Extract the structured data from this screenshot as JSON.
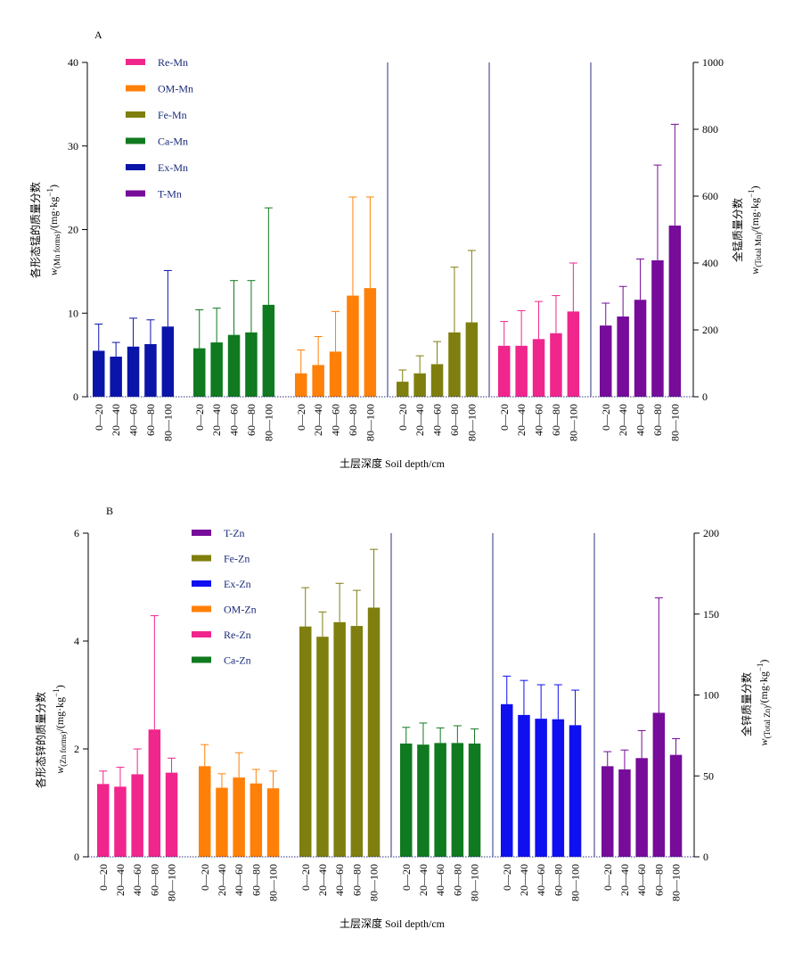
{
  "charts": [
    {
      "panel_label": "A",
      "left_label_line1": "各形态锰的质量分数",
      "left_label_w": "w",
      "left_label_sub": "(Mn forms)",
      "left_label_unit": "/(mg·kg",
      "left_label_sup": "−1",
      "left_label_close": ")",
      "right_label_line1": "全锰质量分数",
      "right_label_w": "w",
      "right_label_sub": "(Total Mn)",
      "right_label_unit": "/(mg·kg",
      "right_label_sup": "−1",
      "right_label_close": ")",
      "xlabel": "土层深度  Soil depth/cm"
    },
    {
      "panel_label": "B",
      "left_label_line1": "各形态锌的质量分数",
      "left_label_w": "w",
      "left_label_sub": "(Zn forms)",
      "left_label_unit": "/(mg·kg",
      "left_label_sup": "−1",
      "left_label_close": ")",
      "right_label_line1": "全锌质量分数",
      "right_label_w": "w",
      "right_label_sub": "(Total Zn)",
      "right_label_unit": "/(mg·kg",
      "right_label_sup": "−1",
      "right_label_close": ")",
      "xlabel": "土层深度  Soil depth/cm"
    }
  ],
  "chart_data": [
    {
      "type": "bar",
      "categories": [
        "0—20",
        "20—40",
        "40—60",
        "60—80",
        "80—100"
      ],
      "y_left_lim": [
        0,
        40
      ],
      "y_left_ticks": [
        0,
        10,
        20,
        30,
        40
      ],
      "y_right_lim": [
        0,
        1000
      ],
      "y_right_ticks": [
        0,
        200,
        400,
        600,
        800,
        1000
      ],
      "legend": [
        "Re-Mn",
        "OM-Mn",
        "Fe-Mn",
        "Ca-Mn",
        "Ex-Mn",
        "T-Mn"
      ],
      "series": [
        {
          "name": "Ex-Mn",
          "color": "#0b14a8",
          "axis": "left",
          "values": [
            5.5,
            4.8,
            6.0,
            6.3,
            8.4
          ],
          "errors": [
            3.2,
            1.7,
            3.4,
            2.9,
            6.7
          ]
        },
        {
          "name": "Ca-Mn",
          "color": "#0f7a1f",
          "axis": "left",
          "values": [
            5.8,
            6.5,
            7.4,
            7.7,
            11.0
          ],
          "errors": [
            4.6,
            4.1,
            6.5,
            6.2,
            11.6
          ]
        },
        {
          "name": "OM-Mn",
          "color": "#ff8008",
          "axis": "left",
          "values": [
            2.8,
            3.8,
            5.4,
            12.1,
            13.0
          ],
          "errors": [
            2.8,
            3.4,
            4.8,
            11.8,
            10.9
          ]
        },
        {
          "name": "Fe-Mn",
          "color": "#7f7f0f",
          "axis": "left",
          "values": [
            1.8,
            2.8,
            3.9,
            7.7,
            8.9
          ],
          "errors": [
            1.4,
            2.1,
            2.7,
            7.8,
            8.6
          ]
        },
        {
          "name": "Re-Mn",
          "color": "#f0268c",
          "axis": "left",
          "values": [
            6.1,
            6.1,
            6.9,
            7.6,
            10.2
          ],
          "errors": [
            2.9,
            4.2,
            4.5,
            4.5,
            5.8
          ]
        },
        {
          "name": "T-Mn",
          "color": "#760c99",
          "axis": "right",
          "values": [
            213,
            240,
            290,
            408,
            512
          ],
          "errors": [
            67,
            90,
            122,
            285,
            303
          ]
        }
      ],
      "grid": false
    },
    {
      "type": "bar",
      "categories": [
        "0—20",
        "20—40",
        "40—60",
        "60—80",
        "80—100"
      ],
      "y_left_lim": [
        0,
        6
      ],
      "y_left_ticks": [
        0,
        2,
        4,
        6
      ],
      "y_right_lim": [
        0,
        200
      ],
      "y_right_ticks": [
        0,
        50,
        100,
        150,
        200
      ],
      "legend": [
        "T-Zn",
        "Fe-Zn",
        "Ex-Zn",
        "OM-Zn",
        "Re-Zn",
        "Ca-Zn"
      ],
      "series": [
        {
          "name": "Re-Zn",
          "color": "#f0268c",
          "axis": "left",
          "values": [
            1.35,
            1.3,
            1.53,
            2.36,
            1.56
          ],
          "errors": [
            0.24,
            0.36,
            0.47,
            2.11,
            0.27
          ]
        },
        {
          "name": "OM-Zn",
          "color": "#ff8008",
          "axis": "left",
          "values": [
            1.68,
            1.28,
            1.47,
            1.36,
            1.27
          ],
          "errors": [
            0.4,
            0.26,
            0.46,
            0.26,
            0.32
          ]
        },
        {
          "name": "Fe-Zn",
          "color": "#7f7f0f",
          "axis": "left",
          "values": [
            4.27,
            4.08,
            4.35,
            4.28,
            4.62
          ],
          "errors": [
            0.72,
            0.46,
            0.72,
            0.66,
            1.08
          ]
        },
        {
          "name": "Ca-Zn",
          "color": "#0f7a1f",
          "axis": "left",
          "values": [
            2.1,
            2.08,
            2.11,
            2.11,
            2.1
          ],
          "errors": [
            0.3,
            0.4,
            0.28,
            0.32,
            0.27
          ]
        },
        {
          "name": "Ex-Zn",
          "color": "#0f0ff0",
          "axis": "left",
          "values": [
            2.83,
            2.63,
            2.56,
            2.55,
            2.44
          ],
          "errors": [
            0.52,
            0.64,
            0.63,
            0.64,
            0.65
          ]
        },
        {
          "name": "T-Zn",
          "color": "#760c99",
          "axis": "right",
          "values": [
            56,
            54,
            61,
            89,
            63
          ],
          "errors": [
            9,
            12,
            17,
            71,
            10
          ]
        }
      ],
      "grid": false
    }
  ]
}
